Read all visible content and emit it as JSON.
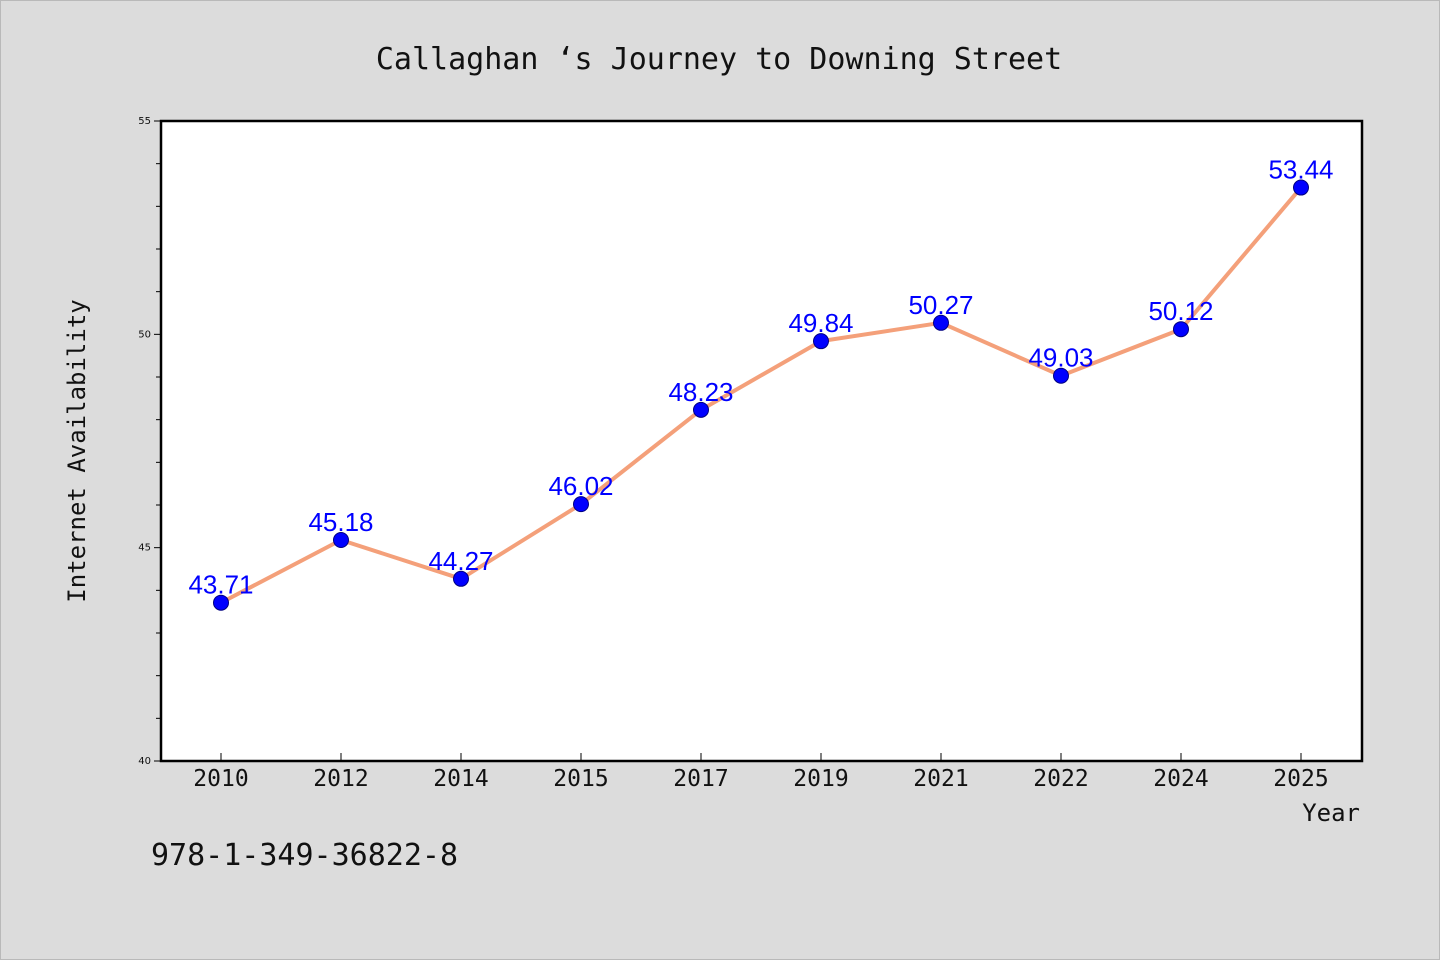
{
  "chart_data": {
    "type": "line",
    "title": "Callaghan ‘s Journey to Downing Street",
    "xlabel": "Year",
    "ylabel": "Internet Availability",
    "categories": [
      "2010",
      "2012",
      "2014",
      "2015",
      "2017",
      "2019",
      "2021",
      "2022",
      "2024",
      "2025"
    ],
    "series": [
      {
        "values": [
          43.71,
          45.18,
          44.27,
          46.02,
          48.23,
          49.84,
          50.27,
          49.03,
          50.12,
          53.44
        ],
        "data_labels": [
          "43.71",
          "45.18",
          "44.27",
          "46.02",
          "48.23",
          "49.84",
          "50.27",
          "49.03",
          "50.12",
          "53.44"
        ],
        "line_color": "#f4a07a",
        "marker_color": "#0000ff"
      }
    ],
    "ylim": [
      40,
      55
    ],
    "y_ticks": [
      "40",
      "45",
      "50",
      "55"
    ],
    "grid": false,
    "legend": "none"
  },
  "footer": {
    "isbn": "978-1-349-36822-8"
  },
  "colors": {
    "background": "#dcdcdc",
    "plot_background": "#ffffff",
    "label_color": "#0000ff"
  }
}
